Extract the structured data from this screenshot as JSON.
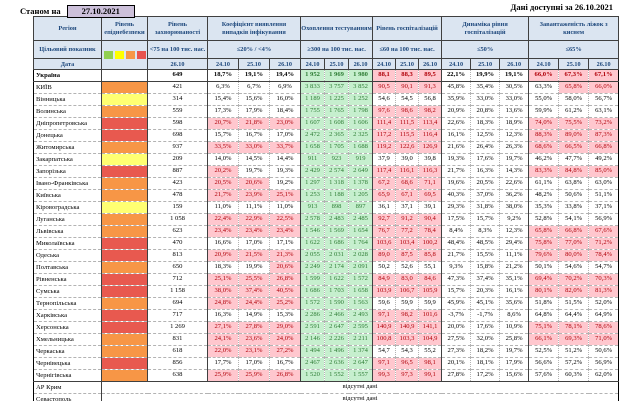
{
  "meta": {
    "as_of_label": "Станом на",
    "as_of_date": "27.10.2021",
    "available_label": "Дані доступні за  26.10.2021"
  },
  "columns": {
    "region": "Регіон",
    "target_label": "Цільовий показник",
    "date_label": "Дата",
    "danger_title": "Рівень епіднебезпеки",
    "groups": [
      {
        "title": "Рівень захворюваності",
        "criterion": "<75 на 100 тис. нас.",
        "dates": [
          "26.10"
        ]
      },
      {
        "title": "Коефіцієнт виявлення випадків інфікування",
        "criterion": "≤20% / <4%",
        "dates": [
          "24.10",
          "25.10",
          "26.10"
        ]
      },
      {
        "title": "Охоплення тестуванням",
        "criterion": "≥300 на 100 тис. нас.",
        "dates": [
          "24.10",
          "25.10",
          "26.10"
        ]
      },
      {
        "title": "Рівень госпіталізацій",
        "criterion": "≤60 на 100 тис. нас.",
        "dates": [
          "24.10",
          "25.10",
          "26.10"
        ]
      },
      {
        "title": "Динаміка рівня госпіталізацій",
        "criterion": "≤50%",
        "dates": [
          "24.10",
          "25.10",
          "26.10"
        ]
      },
      {
        "title": "Завантаженість ліжок з киснем",
        "criterion": "≤65%",
        "dates": [
          "24.10",
          "25.10",
          "26.10"
        ]
      }
    ]
  },
  "legend_colors": [
    "#92d050",
    "#ffff00",
    "#f79646",
    "#e8534e"
  ],
  "palette": {
    "green": "#92d050",
    "yellow": "#ffff72",
    "orange": "#f79646",
    "red": "#e8594f"
  },
  "status_colors": {
    "bad_bg": "#ffc7ce",
    "bad_text": "#b00009",
    "good_bg": "#c6efce",
    "good_text": "#2e7d35",
    "header_bg": "#dbe5f1",
    "header_text": "#1f497d",
    "asof_bg": "#ccc0da"
  },
  "rows": [
    {
      "region": "Україна",
      "danger": "",
      "bold": true,
      "solid_bottom": true,
      "inc": "649",
      "det": [
        "18,7%",
        "19,1%",
        "19,4%"
      ],
      "detf": [
        0,
        0,
        0
      ],
      "test": [
        "1 952",
        "1 969",
        "1 980"
      ],
      "hosp": [
        "88,1",
        "88,3",
        "89,5"
      ],
      "hospf": [
        1,
        1,
        1
      ],
      "dyn": [
        "22,1%",
        "19,9%",
        "19,1%"
      ],
      "oxy": [
        "66,0%",
        "67,3%",
        "67,1%"
      ],
      "oxyf": [
        1,
        1,
        1
      ]
    },
    {
      "region": "КИЇВ",
      "danger": "orange",
      "inc": "421",
      "det": [
        "6,3%",
        "6,7%",
        "6,9%"
      ],
      "detf": [
        0,
        0,
        0
      ],
      "test": [
        "3 833",
        "3 757",
        "3 852"
      ],
      "hosp": [
        "90,5",
        "90,1",
        "91,3"
      ],
      "hospf": [
        1,
        1,
        1
      ],
      "dyn": [
        "45,8%",
        "35,4%",
        "30,5%"
      ],
      "oxy": [
        "63,3%",
        "65,8%",
        "66,0%"
      ],
      "oxyf": [
        0,
        1,
        1
      ]
    },
    {
      "region": "Вінницька",
      "danger": "yellow",
      "inc": "314",
      "det": [
        "15,4%",
        "15,6%",
        "16,0%"
      ],
      "detf": [
        0,
        0,
        0
      ],
      "test": [
        "1 189",
        "1 225",
        "1 252"
      ],
      "hosp": [
        "54,6",
        "54,5",
        "56,8"
      ],
      "hospf": [
        0,
        0,
        0
      ],
      "dyn": [
        "35,9%",
        "33,0%",
        "33,0%"
      ],
      "oxy": [
        "55,0%",
        "58,0%",
        "56,7%"
      ],
      "oxyf": [
        0,
        0,
        0
      ]
    },
    {
      "region": "Волинська",
      "danger": "orange",
      "inc": "559",
      "det": [
        "17,3%",
        "17,9%",
        "18,4%"
      ],
      "detf": [
        0,
        0,
        0
      ],
      "test": [
        "1 755",
        "1 765",
        "1 798"
      ],
      "hosp": [
        "97,6",
        "98,6",
        "98,2"
      ],
      "hospf": [
        1,
        1,
        1
      ],
      "dyn": [
        "20,9%",
        "20,8%",
        "13,6%"
      ],
      "oxy": [
        "59,9%",
        "61,2%",
        "63,1%"
      ],
      "oxyf": [
        0,
        0,
        0
      ]
    },
    {
      "region": "Дніпропетровська",
      "danger": "red",
      "inc": "598",
      "det": [
        "20,7%",
        "21,8%",
        "23,0%"
      ],
      "detf": [
        1,
        1,
        1
      ],
      "test": [
        "1 607",
        "1 608",
        "1 606"
      ],
      "hosp": [
        "111,4",
        "111,5",
        "113,4"
      ],
      "hospf": [
        1,
        1,
        1
      ],
      "dyn": [
        "22,6%",
        "18,3%",
        "18,9%"
      ],
      "oxy": [
        "74,0%",
        "75,5%",
        "73,2%"
      ],
      "oxyf": [
        1,
        1,
        1
      ]
    },
    {
      "region": "Донецька",
      "danger": "red",
      "inc": "698",
      "det": [
        "15,7%",
        "16,7%",
        "17,0%"
      ],
      "detf": [
        0,
        0,
        0
      ],
      "test": [
        "2 472",
        "2 365",
        "2 325"
      ],
      "hosp": [
        "117,2",
        "115,5",
        "116,4"
      ],
      "hospf": [
        1,
        1,
        1
      ],
      "dyn": [
        "16,1%",
        "12,5%",
        "12,3%"
      ],
      "oxy": [
        "88,3%",
        "89,0%",
        "87,3%"
      ],
      "oxyf": [
        1,
        1,
        1
      ]
    },
    {
      "region": "Житомирська",
      "danger": "orange",
      "inc": "937",
      "det": [
        "33,5%",
        "33,0%",
        "33,7%"
      ],
      "detf": [
        1,
        1,
        1
      ],
      "test": [
        "1 658",
        "1 705",
        "1 688"
      ],
      "hosp": [
        "119,2",
        "122,6",
        "126,9"
      ],
      "hospf": [
        1,
        1,
        1
      ],
      "dyn": [
        "21,6%",
        "26,4%",
        "26,3%"
      ],
      "oxy": [
        "68,6%",
        "66,5%",
        "66,8%"
      ],
      "oxyf": [
        1,
        1,
        1
      ]
    },
    {
      "region": "Закарпатська",
      "danger": "yellow",
      "inc": "209",
      "det": [
        "14,0%",
        "14,5%",
        "14,4%"
      ],
      "detf": [
        0,
        0,
        0
      ],
      "test": [
        "911",
        "923",
        "919"
      ],
      "hosp": [
        "37,9",
        "39,0",
        "39,8"
      ],
      "hospf": [
        0,
        0,
        0
      ],
      "dyn": [
        "19,3%",
        "17,6%",
        "19,7%"
      ],
      "oxy": [
        "46,2%",
        "47,7%",
        "49,2%"
      ],
      "oxyf": [
        0,
        0,
        0
      ]
    },
    {
      "region": "Запорізька",
      "danger": "red",
      "inc": "887",
      "det": [
        "20,2%",
        "19,7%",
        "19,3%"
      ],
      "detf": [
        1,
        0,
        0
      ],
      "test": [
        "2 429",
        "2 574",
        "2 649"
      ],
      "hosp": [
        "117,4",
        "116,1",
        "116,3"
      ],
      "hospf": [
        1,
        1,
        1
      ],
      "dyn": [
        "21,7%",
        "16,3%",
        "14,3%"
      ],
      "oxy": [
        "83,3%",
        "84,8%",
        "85,0%"
      ],
      "oxyf": [
        1,
        1,
        1
      ]
    },
    {
      "region": "Івано-Франківська",
      "danger": "orange",
      "inc": "423",
      "det": [
        "20,5%",
        "20,6%",
        "19,2%"
      ],
      "detf": [
        1,
        1,
        0
      ],
      "test": [
        "1 297",
        "1 318",
        "1 378"
      ],
      "hosp": [
        "67,2",
        "68,6",
        "71,1"
      ],
      "hospf": [
        1,
        1,
        1
      ],
      "dyn": [
        "19,6%",
        "20,5%",
        "22,6%"
      ],
      "oxy": [
        "61,1%",
        "63,8%",
        "63,0%"
      ],
      "oxyf": [
        0,
        0,
        0
      ]
    },
    {
      "region": "Київська",
      "danger": "orange",
      "inc": "478",
      "det": [
        "21,7%",
        "23,9%",
        "25,1%"
      ],
      "detf": [
        1,
        1,
        1
      ],
      "test": [
        "1 253",
        "1 188",
        "1 205"
      ],
      "hosp": [
        "65,9",
        "67,1",
        "69,5"
      ],
      "hospf": [
        1,
        1,
        1
      ],
      "dyn": [
        "40,3%",
        "37,0%",
        "36,2%"
      ],
      "oxy": [
        "48,2%",
        "50,6%",
        "51,1%"
      ],
      "oxyf": [
        0,
        0,
        0
      ]
    },
    {
      "region": "Кіровоградська",
      "danger": "yellow",
      "inc": "159",
      "det": [
        "11,0%",
        "11,1%",
        "11,0%"
      ],
      "detf": [
        0,
        0,
        0
      ],
      "test": [
        "913",
        "898",
        "897"
      ],
      "hosp": [
        "36,1",
        "37,1",
        "39,1"
      ],
      "hospf": [
        0,
        0,
        0
      ],
      "dyn": [
        "29,3%",
        "31,8%",
        "38,0%"
      ],
      "oxy": [
        "35,3%",
        "33,8%",
        "37,1%"
      ],
      "oxyf": [
        0,
        0,
        0
      ]
    },
    {
      "region": "Луганська",
      "danger": "orange",
      "inc": "1 058",
      "det": [
        "22,4%",
        "22,9%",
        "22,5%"
      ],
      "detf": [
        1,
        1,
        1
      ],
      "test": [
        "2 578",
        "2 483",
        "2 485"
      ],
      "hosp": [
        "92,7",
        "91,2",
        "90,4"
      ],
      "hospf": [
        1,
        1,
        1
      ],
      "dyn": [
        "17,5%",
        "15,7%",
        "9,2%"
      ],
      "oxy": [
        "52,8%",
        "54,1%",
        "56,9%"
      ],
      "oxyf": [
        0,
        0,
        0
      ]
    },
    {
      "region": "Львівська",
      "danger": "orange",
      "inc": "623",
      "det": [
        "23,4%",
        "23,4%",
        "23,4%"
      ],
      "detf": [
        1,
        1,
        1
      ],
      "test": [
        "1 546",
        "1 569",
        "1 654"
      ],
      "hosp": [
        "76,7",
        "77,2",
        "78,4"
      ],
      "hospf": [
        1,
        1,
        1
      ],
      "dyn": [
        "8,4%",
        "8,3%",
        "12,3%"
      ],
      "oxy": [
        "65,8%",
        "66,8%",
        "67,6%"
      ],
      "oxyf": [
        1,
        1,
        1
      ]
    },
    {
      "region": "Миколаївська",
      "danger": "red",
      "inc": "470",
      "det": [
        "16,6%",
        "17,0%",
        "17,1%"
      ],
      "detf": [
        0,
        0,
        0
      ],
      "test": [
        "1 622",
        "1 686",
        "1 764"
      ],
      "hosp": [
        "103,6",
        "103,4",
        "100,2"
      ],
      "hospf": [
        1,
        1,
        1
      ],
      "dyn": [
        "48,4%",
        "48,5%",
        "29,4%"
      ],
      "oxy": [
        "75,8%",
        "77,0%",
        "71,2%"
      ],
      "oxyf": [
        1,
        1,
        1
      ]
    },
    {
      "region": "Одеська",
      "danger": "red",
      "inc": "813",
      "det": [
        "20,9%",
        "21,5%",
        "21,3%"
      ],
      "detf": [
        1,
        1,
        1
      ],
      "test": [
        "2 055",
        "2 031",
        "2 028"
      ],
      "hosp": [
        "89,0",
        "87,5",
        "85,8"
      ],
      "hospf": [
        1,
        1,
        1
      ],
      "dyn": [
        "21,7%",
        "15,5%",
        "11,1%"
      ],
      "oxy": [
        "79,6%",
        "80,0%",
        "78,4%"
      ],
      "oxyf": [
        1,
        1,
        1
      ]
    },
    {
      "region": "Полтавська",
      "danger": "orange",
      "inc": "650",
      "det": [
        "18,3%",
        "19,9%",
        "20,6%"
      ],
      "detf": [
        0,
        0,
        1
      ],
      "test": [
        "2 249",
        "2 174",
        "2 091"
      ],
      "hosp": [
        "50,2",
        "52,6",
        "55,1"
      ],
      "hospf": [
        0,
        0,
        0
      ],
      "dyn": [
        "9,3%",
        "15,8%",
        "21,2%"
      ],
      "oxy": [
        "50,1%",
        "54,6%",
        "54,7%"
      ],
      "oxyf": [
        0,
        0,
        0
      ]
    },
    {
      "region": "Рівненська",
      "danger": "red",
      "inc": "712",
      "det": [
        "25,1%",
        "25,5%",
        "26,8%"
      ],
      "detf": [
        1,
        1,
        1
      ],
      "test": [
        "1 599",
        "1 622",
        "1 572"
      ],
      "hosp": [
        "84,9",
        "83,0",
        "84,6"
      ],
      "hospf": [
        1,
        1,
        1
      ],
      "dyn": [
        "47,3%",
        "37,4%",
        "35,1%"
      ],
      "oxy": [
        "69,4%",
        "70,2%",
        "70,3%"
      ],
      "oxyf": [
        1,
        1,
        1
      ]
    },
    {
      "region": "Сумська",
      "danger": "red",
      "inc": "1 158",
      "det": [
        "38,0%",
        "37,4%",
        "40,5%"
      ],
      "detf": [
        1,
        1,
        1
      ],
      "test": [
        "1 686",
        "1 703",
        "1 658"
      ],
      "hosp": [
        "103,9",
        "106,7",
        "105,9"
      ],
      "hospf": [
        1,
        1,
        1
      ],
      "dyn": [
        "15,7%",
        "20,3%",
        "16,1%"
      ],
      "oxy": [
        "80,1%",
        "82,0%",
        "81,3%"
      ],
      "oxyf": [
        1,
        1,
        1
      ]
    },
    {
      "region": "Тернопільська",
      "danger": "orange",
      "inc": "694",
      "det": [
        "24,8%",
        "24,4%",
        "25,2%"
      ],
      "detf": [
        1,
        1,
        1
      ],
      "test": [
        "1 572",
        "1 590",
        "1 563"
      ],
      "hosp": [
        "59,6",
        "59,9",
        "59,9"
      ],
      "hospf": [
        0,
        0,
        0
      ],
      "dyn": [
        "45,9%",
        "45,1%",
        "35,6%"
      ],
      "oxy": [
        "51,8%",
        "51,5%",
        "52,0%"
      ],
      "oxyf": [
        0,
        0,
        0
      ]
    },
    {
      "region": "Харківська",
      "danger": "red",
      "inc": "717",
      "det": [
        "16,3%",
        "14,9%",
        "15,3%"
      ],
      "detf": [
        0,
        0,
        0
      ],
      "test": [
        "2 286",
        "2 466",
        "2 493"
      ],
      "hosp": [
        "97,1",
        "98,2",
        "101,6"
      ],
      "hospf": [
        1,
        1,
        1
      ],
      "dyn": [
        "-3,7%",
        "-1,7%",
        "8,6%"
      ],
      "oxy": [
        "64,8%",
        "64,4%",
        "64,9%"
      ],
      "oxyf": [
        0,
        0,
        0
      ]
    },
    {
      "region": "Херсонська",
      "danger": "red",
      "inc": "1 269",
      "det": [
        "27,1%",
        "27,8%",
        "29,0%"
      ],
      "detf": [
        1,
        1,
        1
      ],
      "test": [
        "2 591",
        "2 647",
        "2 595"
      ],
      "hosp": [
        "140,9",
        "140,9",
        "141,1"
      ],
      "hospf": [
        1,
        1,
        1
      ],
      "dyn": [
        "20,0%",
        "17,6%",
        "10,9%"
      ],
      "oxy": [
        "75,1%",
        "78,1%",
        "78,6%"
      ],
      "oxyf": [
        1,
        1,
        1
      ]
    },
    {
      "region": "Хмельницька",
      "danger": "orange",
      "inc": "831",
      "det": [
        "24,1%",
        "23,6%",
        "24,0%"
      ],
      "detf": [
        1,
        1,
        1
      ],
      "test": [
        "2 146",
        "2 226",
        "2 211"
      ],
      "hosp": [
        "100,8",
        "103,3",
        "104,9"
      ],
      "hospf": [
        1,
        1,
        1
      ],
      "dyn": [
        "27,5%",
        "32,0%",
        "25,8%"
      ],
      "oxy": [
        "66,1%",
        "69,3%",
        "71,0%"
      ],
      "oxyf": [
        1,
        1,
        1
      ]
    },
    {
      "region": "Черкаська",
      "danger": "orange",
      "inc": "618",
      "det": [
        "22,0%",
        "23,1%",
        "27,2%"
      ],
      "detf": [
        1,
        1,
        1
      ],
      "test": [
        "1 494",
        "1 496",
        "1 374"
      ],
      "hosp": [
        "54,7",
        "54,3",
        "55,2"
      ],
      "hospf": [
        0,
        0,
        0
      ],
      "dyn": [
        "27,3%",
        "18,2%",
        "19,7%"
      ],
      "oxy": [
        "52,5%",
        "51,2%",
        "50,6%"
      ],
      "oxyf": [
        0,
        0,
        0
      ]
    },
    {
      "region": "Чернівецька",
      "danger": "red",
      "inc": "856",
      "det": [
        "17,7%",
        "17,0%",
        "16,7%"
      ],
      "detf": [
        0,
        0,
        0
      ],
      "test": [
        "2 467",
        "2 636",
        "2 647"
      ],
      "hosp": [
        "97,1",
        "96,5",
        "98,1"
      ],
      "hospf": [
        1,
        1,
        1
      ],
      "dyn": [
        "20,1%",
        "18,1%",
        "17,9%"
      ],
      "oxy": [
        "56,6%",
        "57,2%",
        "56,9%"
      ],
      "oxyf": [
        0,
        0,
        0
      ]
    },
    {
      "region": "Чернігівська",
      "danger": "orange",
      "solid_bottom": true,
      "inc": "638",
      "det": [
        "25,9%",
        "25,9%",
        "26,8%"
      ],
      "detf": [
        1,
        1,
        1
      ],
      "test": [
        "1 520",
        "1 552",
        "1 557"
      ],
      "hosp": [
        "99,3",
        "97,3",
        "99,1"
      ],
      "hospf": [
        1,
        1,
        1
      ],
      "dyn": [
        "27,8%",
        "17,2%",
        "15,6%"
      ],
      "oxy": [
        "57,6%",
        "60,3%",
        "62,0%"
      ],
      "oxyf": [
        0,
        0,
        0
      ]
    },
    {
      "region": "АР Крим",
      "no_data": "відсутні дані"
    },
    {
      "region": "Севастополь",
      "no_data": "відсутні дані"
    }
  ]
}
